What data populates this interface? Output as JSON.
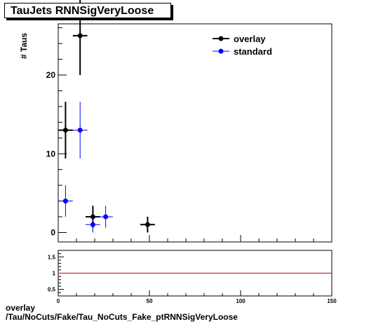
{
  "title": "TauJets RNNSigVeryLoose",
  "ylabel": "# Taus",
  "footer": {
    "line1": "overlay",
    "line2": "/Tau/NoCuts/Fake/Tau_NoCuts_Fake_ptRNNSigVeryLoose"
  },
  "colors": {
    "overlay": "#000000",
    "standard": "#0000ff",
    "ratio_line": "#cc0000"
  },
  "chart_data": [
    {
      "type": "scatter",
      "title": "TauJets RNNSigVeryLoose",
      "xlabel": "",
      "ylabel": "# Taus",
      "xlim": [
        0,
        150
      ],
      "ylim": [
        -1.2,
        26.5
      ],
      "yticks": [
        0,
        10,
        20
      ],
      "xticks": [
        0,
        50,
        100,
        150
      ],
      "legend": "top-right",
      "grid": false,
      "series": [
        {
          "name": "overlay",
          "color": "#000000",
          "points": [
            {
              "x": 4,
              "y": 13,
              "xerr": 4,
              "yerr": 3.6
            },
            {
              "x": 12,
              "y": 25,
              "xerr": 4,
              "yerr": 5
            },
            {
              "x": 19,
              "y": 2,
              "xerr": 4,
              "yerr": 1.4
            },
            {
              "x": 49,
              "y": 1,
              "xerr": 4,
              "yerr": 1
            }
          ]
        },
        {
          "name": "standard",
          "color": "#0000ff",
          "points": [
            {
              "x": 4,
              "y": 4,
              "xerr": 4,
              "yerr": 2
            },
            {
              "x": 12,
              "y": 13,
              "xerr": 4,
              "yerr": 3.6
            },
            {
              "x": 19,
              "y": 1,
              "xerr": 4,
              "yerr": 1
            },
            {
              "x": 26,
              "y": 2,
              "xerr": 4,
              "yerr": 1.4
            }
          ]
        }
      ]
    },
    {
      "type": "line",
      "title": "",
      "xlabel": "",
      "ylabel": "",
      "xlim": [
        0,
        150
      ],
      "ylim": [
        0.3,
        1.7
      ],
      "yticks": [
        0.5,
        1,
        1.5
      ],
      "xticks": [
        0,
        50,
        100,
        150
      ],
      "reference_value": 1
    }
  ]
}
